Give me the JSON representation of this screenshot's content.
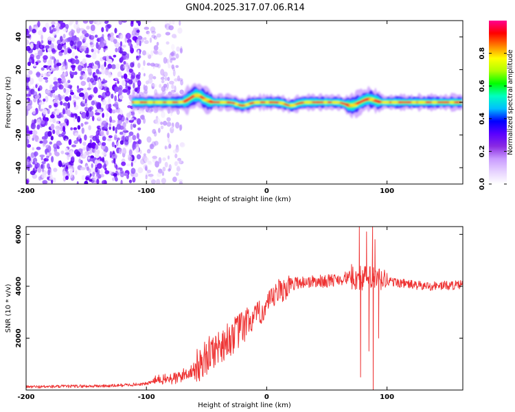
{
  "title": "GN04.2025.317.07.06.R14",
  "chart_data": [
    {
      "type": "heatmap",
      "name": "spectrogram",
      "xlabel": "Height of straight line (km)",
      "ylabel": "Frequency (Hz)",
      "xlim": [
        -200,
        163
      ],
      "ylim": [
        -50,
        50
      ],
      "xticks": [
        -200,
        -100,
        0,
        100
      ],
      "yticks": [
        -40,
        -20,
        0,
        20,
        40
      ],
      "colorbar": {
        "label": "Normalized spectral amplitude",
        "range": [
          0,
          1
        ],
        "ticks": [
          "0.0",
          "0.2",
          "0.4",
          "0.6",
          "0.8"
        ],
        "colormap": [
          "#ffffff",
          "#e6d2ff",
          "#c99bff",
          "#8a2be2",
          "#5a00ff",
          "#0000ff",
          "#00bfff",
          "#00ffc0",
          "#00ff00",
          "#b0ff00",
          "#ffff00",
          "#ff8000",
          "#ff0000",
          "#ff0090"
        ]
      },
      "noise_region_x": [
        -200,
        -70
      ],
      "carrier_start_x": -112,
      "carrier_freq_hz": 0,
      "feature_offsets_hz": [
        {
          "x": -60,
          "hz": 3
        },
        {
          "x": -55,
          "hz": 2
        },
        {
          "x": -20,
          "hz": -2
        },
        {
          "x": 20,
          "hz": -2
        },
        {
          "x": 70,
          "hz": -2
        },
        {
          "x": 85,
          "hz": 2
        }
      ]
    },
    {
      "type": "line",
      "name": "snr",
      "xlabel": "Height of straight line (km)",
      "ylabel": "SNR (10 * v/v)",
      "xlim": [
        -200,
        163
      ],
      "ylim": [
        0,
        6300
      ],
      "xticks": [
        -200,
        -100,
        0,
        100
      ],
      "yticks": [
        2000,
        4000,
        6000
      ],
      "color": "#ee3333",
      "trend": [
        {
          "x": -200,
          "y": 120
        },
        {
          "x": -130,
          "y": 160
        },
        {
          "x": -100,
          "y": 240
        },
        {
          "x": -90,
          "y": 400
        },
        {
          "x": -75,
          "y": 450
        },
        {
          "x": -60,
          "y": 800
        },
        {
          "x": -45,
          "y": 1500
        },
        {
          "x": -30,
          "y": 2000
        },
        {
          "x": -15,
          "y": 2600
        },
        {
          "x": 0,
          "y": 3200
        },
        {
          "x": 10,
          "y": 3800
        },
        {
          "x": 25,
          "y": 4150
        },
        {
          "x": 50,
          "y": 4200
        },
        {
          "x": 70,
          "y": 4350
        },
        {
          "x": 85,
          "y": 4300
        },
        {
          "x": 100,
          "y": 4200
        },
        {
          "x": 130,
          "y": 4000
        },
        {
          "x": 163,
          "y": 4050
        }
      ],
      "spikes": [
        {
          "x": 77,
          "y": 6300
        },
        {
          "x": 78,
          "y": 500
        },
        {
          "x": 83,
          "y": 6100
        },
        {
          "x": 85,
          "y": 1500
        },
        {
          "x": 88,
          "y": 6300
        },
        {
          "x": 88.5,
          "y": 0
        },
        {
          "x": 90,
          "y": 5800
        },
        {
          "x": 93,
          "y": 2000
        }
      ]
    }
  ]
}
